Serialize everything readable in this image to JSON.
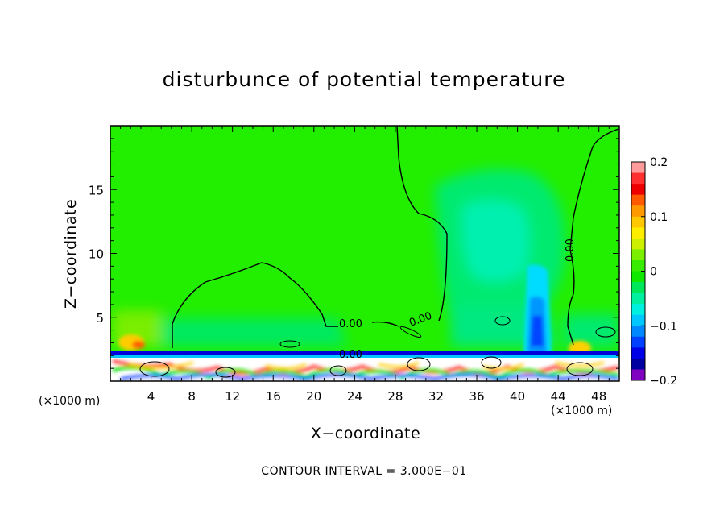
{
  "chart_data": {
    "type": "heatmap",
    "title": "disturbunce of potential temperature",
    "xlabel": "X−coordinate",
    "ylabel": "Z−coordinate",
    "x_unit_left": "(×1000 m)",
    "x_unit_right": "(×1000 m)",
    "xlim": [
      0,
      50
    ],
    "ylim": [
      0,
      20
    ],
    "x_ticks": [
      4,
      8,
      12,
      16,
      20,
      24,
      28,
      32,
      36,
      40,
      44,
      48
    ],
    "y_ticks": [
      5,
      10,
      15
    ],
    "colorbar": {
      "range": [
        -0.2,
        0.2
      ],
      "tick_labels": [
        "0.2",
        "0.1",
        "0",
        "−0.1",
        "−0.2"
      ],
      "tick_values": [
        0.2,
        0.1,
        0,
        -0.1,
        -0.2
      ],
      "colors": [
        "#ff9b9b",
        "#ff3030",
        "#ee0000",
        "#ff5a00",
        "#ff9900",
        "#ffc800",
        "#ffee00",
        "#cdf000",
        "#7af000",
        "#37ec00",
        "#10e800",
        "#00e85a",
        "#00f0a0",
        "#00f0e0",
        "#00c8ff",
        "#0088ff",
        "#0040ff",
        "#0000e6",
        "#0000a0",
        "#8000c0"
      ]
    },
    "contour_labels": [
      {
        "text": "0.00",
        "x": 24.6,
        "z": 4.6
      },
      {
        "text": "0.00",
        "x": 31.5,
        "z": 5.0
      },
      {
        "text": "0.00",
        "x": 24.5,
        "z": 2.3
      },
      {
        "text": "0.00",
        "x": 45.7,
        "z": 10.5
      }
    ],
    "contour_interval_label": "CONTOUR INTERVAL = 3.000E−01"
  }
}
